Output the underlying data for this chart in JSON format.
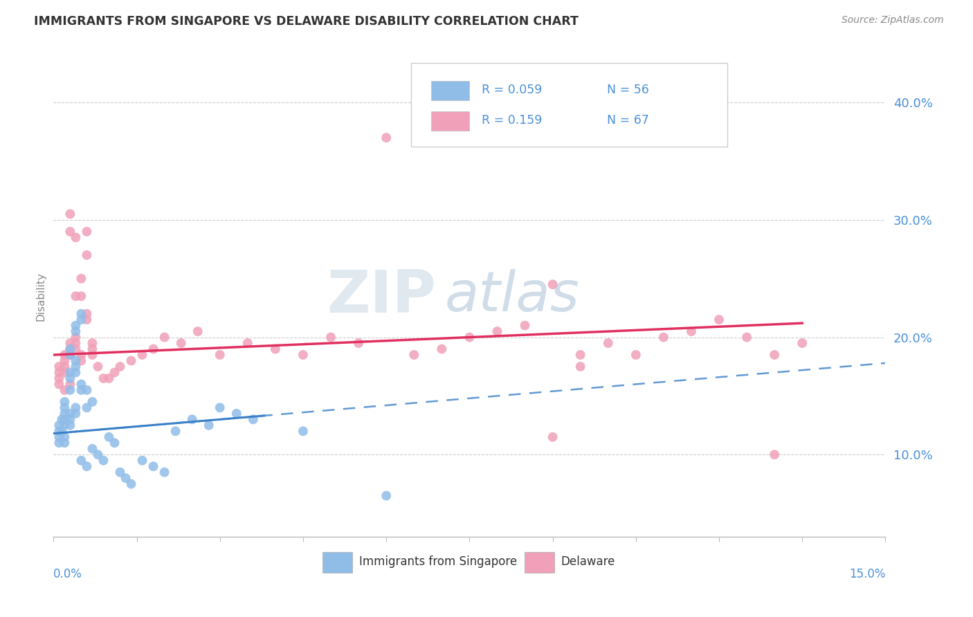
{
  "title": "IMMIGRANTS FROM SINGAPORE VS DELAWARE DISABILITY CORRELATION CHART",
  "source": "Source: ZipAtlas.com",
  "ylabel": "Disability",
  "y_tick_labels": [
    "10.0%",
    "20.0%",
    "30.0%",
    "40.0%"
  ],
  "y_tick_values": [
    0.1,
    0.2,
    0.3,
    0.4
  ],
  "xlim": [
    0.0,
    0.15
  ],
  "ylim": [
    0.03,
    0.44
  ],
  "legend_r_blue": "R = 0.059",
  "legend_n_blue": "N = 56",
  "legend_r_pink": "R = 0.159",
  "legend_n_pink": "N = 67",
  "blue_color": "#90bce8",
  "pink_color": "#f0a0b8",
  "trend_blue_color": "#3a80c8",
  "trend_pink_color": "#e03060",
  "watermark_zip": "ZIP",
  "watermark_atlas": "atlas",
  "bg_color": "#ffffff",
  "title_color": "#333333",
  "source_color": "#888888",
  "grid_color": "#cccccc",
  "axis_label_color": "#4a90d9",
  "blue_x": [
    0.001,
    0.001,
    0.001,
    0.001,
    0.0015,
    0.0015,
    0.002,
    0.002,
    0.002,
    0.002,
    0.002,
    0.002,
    0.002,
    0.003,
    0.003,
    0.003,
    0.003,
    0.003,
    0.003,
    0.003,
    0.003,
    0.004,
    0.004,
    0.004,
    0.004,
    0.004,
    0.004,
    0.004,
    0.005,
    0.005,
    0.005,
    0.005,
    0.005,
    0.006,
    0.006,
    0.006,
    0.007,
    0.007,
    0.008,
    0.009,
    0.01,
    0.011,
    0.012,
    0.013,
    0.014,
    0.016,
    0.018,
    0.02,
    0.022,
    0.025,
    0.028,
    0.03,
    0.033,
    0.036,
    0.045,
    0.06
  ],
  "blue_y": [
    0.125,
    0.12,
    0.115,
    0.11,
    0.13,
    0.12,
    0.135,
    0.13,
    0.125,
    0.14,
    0.145,
    0.115,
    0.11,
    0.17,
    0.165,
    0.155,
    0.19,
    0.185,
    0.135,
    0.13,
    0.125,
    0.21,
    0.205,
    0.18,
    0.175,
    0.17,
    0.14,
    0.135,
    0.22,
    0.215,
    0.16,
    0.155,
    0.095,
    0.155,
    0.14,
    0.09,
    0.145,
    0.105,
    0.1,
    0.095,
    0.115,
    0.11,
    0.085,
    0.08,
    0.075,
    0.095,
    0.09,
    0.085,
    0.12,
    0.13,
    0.125,
    0.14,
    0.135,
    0.13,
    0.12,
    0.065
  ],
  "pink_x": [
    0.001,
    0.001,
    0.001,
    0.001,
    0.002,
    0.002,
    0.002,
    0.002,
    0.002,
    0.003,
    0.003,
    0.003,
    0.003,
    0.003,
    0.003,
    0.004,
    0.004,
    0.004,
    0.004,
    0.004,
    0.005,
    0.005,
    0.005,
    0.005,
    0.006,
    0.006,
    0.006,
    0.006,
    0.007,
    0.007,
    0.007,
    0.008,
    0.009,
    0.01,
    0.011,
    0.012,
    0.014,
    0.016,
    0.018,
    0.02,
    0.023,
    0.026,
    0.03,
    0.035,
    0.04,
    0.045,
    0.05,
    0.055,
    0.06,
    0.065,
    0.07,
    0.075,
    0.08,
    0.085,
    0.09,
    0.095,
    0.1,
    0.105,
    0.11,
    0.115,
    0.12,
    0.125,
    0.13,
    0.09,
    0.095,
    0.13,
    0.135
  ],
  "pink_y": [
    0.175,
    0.17,
    0.165,
    0.16,
    0.185,
    0.18,
    0.175,
    0.17,
    0.155,
    0.305,
    0.29,
    0.195,
    0.19,
    0.185,
    0.16,
    0.285,
    0.235,
    0.2,
    0.195,
    0.19,
    0.25,
    0.235,
    0.185,
    0.18,
    0.29,
    0.27,
    0.22,
    0.215,
    0.195,
    0.19,
    0.185,
    0.175,
    0.165,
    0.165,
    0.17,
    0.175,
    0.18,
    0.185,
    0.19,
    0.2,
    0.195,
    0.205,
    0.185,
    0.195,
    0.19,
    0.185,
    0.2,
    0.195,
    0.37,
    0.185,
    0.19,
    0.2,
    0.205,
    0.21,
    0.115,
    0.185,
    0.195,
    0.185,
    0.2,
    0.205,
    0.215,
    0.2,
    0.185,
    0.245,
    0.175,
    0.1,
    0.195
  ]
}
